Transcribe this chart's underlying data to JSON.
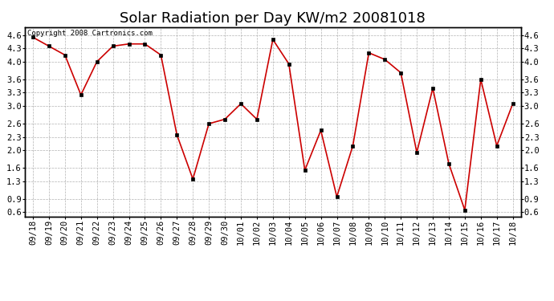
{
  "title": "Solar Radiation per Day KW/m2 20081018",
  "copyright": "Copyright 2008 Cartronics.com",
  "dates": [
    "09/18",
    "09/19",
    "09/20",
    "09/21",
    "09/22",
    "09/23",
    "09/24",
    "09/25",
    "09/26",
    "09/27",
    "09/28",
    "09/29",
    "09/30",
    "10/01",
    "10/02",
    "10/03",
    "10/04",
    "10/05",
    "10/06",
    "10/07",
    "10/08",
    "10/09",
    "10/10",
    "10/11",
    "10/12",
    "10/13",
    "10/14",
    "10/15",
    "10/16",
    "10/17",
    "10/18"
  ],
  "values": [
    4.55,
    4.35,
    4.15,
    3.25,
    4.0,
    4.35,
    4.4,
    4.4,
    4.15,
    2.35,
    1.35,
    2.6,
    2.7,
    3.05,
    2.7,
    4.5,
    3.95,
    1.55,
    2.45,
    0.95,
    2.1,
    4.2,
    4.05,
    3.75,
    1.95,
    3.4,
    1.7,
    0.65,
    3.6,
    2.1,
    3.05
  ],
  "line_color": "#cc0000",
  "marker_color": "#000000",
  "bg_color": "#ffffff",
  "grid_color": "#aaaaaa",
  "yticks": [
    0.6,
    0.9,
    1.3,
    1.6,
    2.0,
    2.3,
    2.6,
    3.0,
    3.3,
    3.6,
    4.0,
    4.3,
    4.6
  ],
  "ylim": [
    0.5,
    4.78
  ],
  "title_fontsize": 13,
  "tick_fontsize": 7.5,
  "copyright_fontsize": 6.5
}
